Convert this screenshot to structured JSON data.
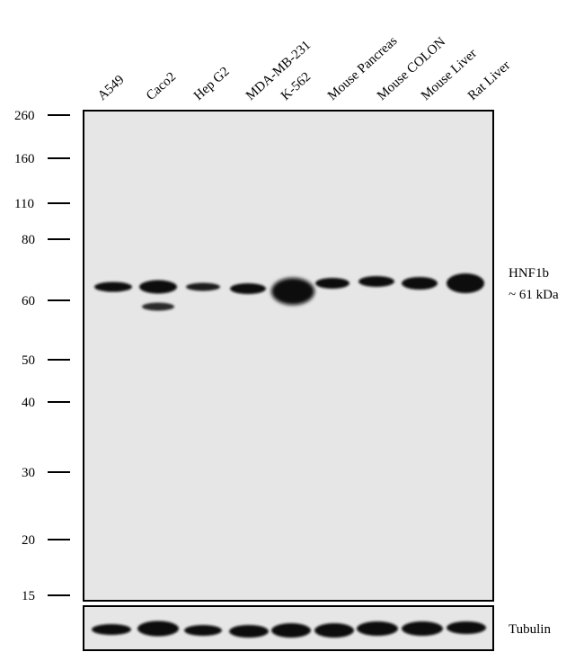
{
  "lanes": [
    "A549",
    "Caco2",
    "Hep G2",
    "MDA-MB-231",
    "K-562",
    "Mouse Pancreas",
    "Mouse COLON",
    "Mouse Liver",
    "Rat Liver"
  ],
  "markers": [
    "260",
    "160",
    "110",
    "80",
    "60",
    "50",
    "40",
    "30",
    "20",
    "15"
  ],
  "target": {
    "name": "HNF1b",
    "size": "~ 61 kDa"
  },
  "loading_control": {
    "name": "Tubulin"
  },
  "colors": {
    "membrane": "#e6e6e6",
    "band": "#0a0a0a",
    "frame": "#000000"
  }
}
